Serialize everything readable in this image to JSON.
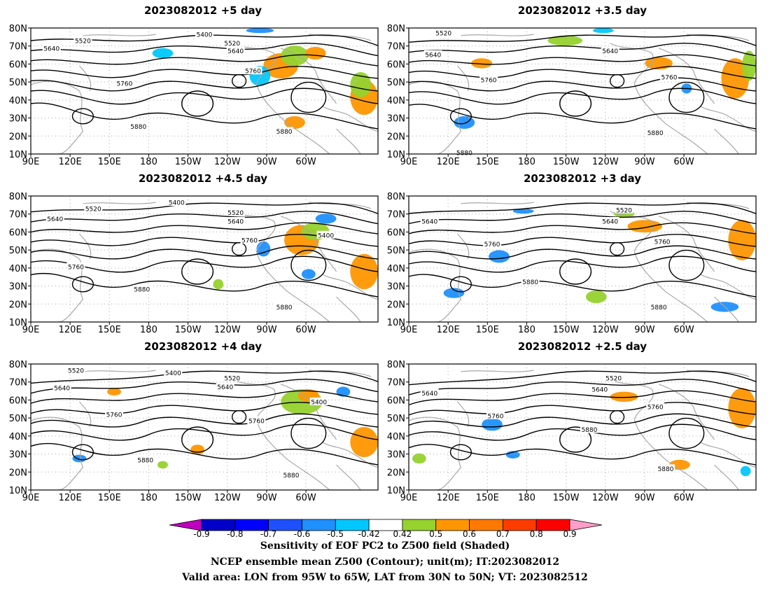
{
  "panels": [
    {
      "title": "2023082012  +5 day",
      "contours": [
        "5400",
        "5520",
        "5520",
        "5640",
        "5640",
        "5760",
        "5760",
        "5880",
        "5880"
      ]
    },
    {
      "title": "2023082012  +3.5  day",
      "contours": [
        "5520",
        "5640",
        "5640",
        "5760",
        "5760",
        "5880",
        "5880"
      ]
    },
    {
      "title": "2023082012  +4.5  day",
      "contours": [
        "5520",
        "5400",
        "5520",
        "5640",
        "5640",
        "5760",
        "5400",
        "5760",
        "5880",
        "5880"
      ]
    },
    {
      "title": "2023082012  +3  day",
      "contours": [
        "5520",
        "5640",
        "5640",
        "5760",
        "5760",
        "5880",
        "5880"
      ]
    },
    {
      "title": "2023082012  +4  day",
      "contours": [
        "5520",
        "5400",
        "5520",
        "5640",
        "5640",
        "5400",
        "5760",
        "5760",
        "5880",
        "5880"
      ]
    },
    {
      "title": "2023082012  +2.5  day",
      "contours": [
        "5520",
        "5640",
        "5640",
        "5760",
        "5760",
        "5880",
        "5880"
      ]
    }
  ],
  "axes": {
    "lat_labels": [
      "80N",
      "70N",
      "60N",
      "50N",
      "40N",
      "30N",
      "20N",
      "10N"
    ],
    "lon_labels": [
      "90E",
      "120E",
      "150E",
      "180",
      "150W",
      "120W",
      "90W",
      "60W"
    ]
  },
  "colorbar": {
    "ticks": [
      "-0.9",
      "-0.8",
      "-0.7",
      "-0.6",
      "-0.5",
      "-0.42",
      "0.42",
      "0.5",
      "0.6",
      "0.7",
      "0.8",
      "0.9"
    ],
    "colors": {
      "below": "#c000c0",
      "c1": "#0000c8",
      "c2": "#0000ff",
      "c3": "#1e50ff",
      "c4": "#1e90ff",
      "c5": "#00c8ff",
      "c6": "#ffffff",
      "c7": "#96d22d",
      "c8": "#ff9600",
      "c9": "#ff7800",
      "c10": "#ff3c00",
      "c11": "#ff0000",
      "above": "#ff9ec8"
    }
  },
  "caption": {
    "line1": "Sensitivity of EOF PC2 to Z500 field (Shaded)",
    "line2": "NCEP ensemble mean Z500 (Contour); unit(m); IT:2023082012",
    "line3": "Valid area: LON from 95W to 65W, LAT from 30N to 50N; VT: 2023082512"
  }
}
